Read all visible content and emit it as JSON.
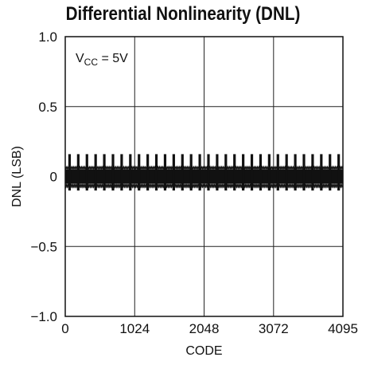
{
  "chart_data": {
    "type": "line",
    "title": "Differential Nonlinearity (DNL)",
    "xlabel": "CODE",
    "ylabel": "DNL (LSB)",
    "xlim": [
      0,
      4095
    ],
    "ylim": [
      -1.0,
      1.0
    ],
    "x_ticks": [
      0,
      1024,
      2048,
      3072,
      4095
    ],
    "x_tick_labels": [
      "0",
      "1024",
      "2048",
      "3072",
      "4095"
    ],
    "y_ticks": [
      1.0,
      0.5,
      0,
      -0.5,
      -1.0
    ],
    "y_tick_labels": [
      "1.0",
      "0.5",
      "0",
      "−0.5",
      "−1.0"
    ],
    "grid": true,
    "annotation": {
      "main": "V",
      "sub": "CC",
      "rest": " = 5V"
    },
    "series": [
      {
        "noise_band": [
          -0.05,
          0.05
        ],
        "band_extent": [
          -0.08,
          0.07
        ],
        "spike_peak": 0.16,
        "spike_low": -0.1,
        "spike_period_codes": 128,
        "spike_count": 32
      }
    ],
    "colors": {
      "trace": "#111111",
      "grid": "#222222",
      "axes": "#111111"
    }
  }
}
